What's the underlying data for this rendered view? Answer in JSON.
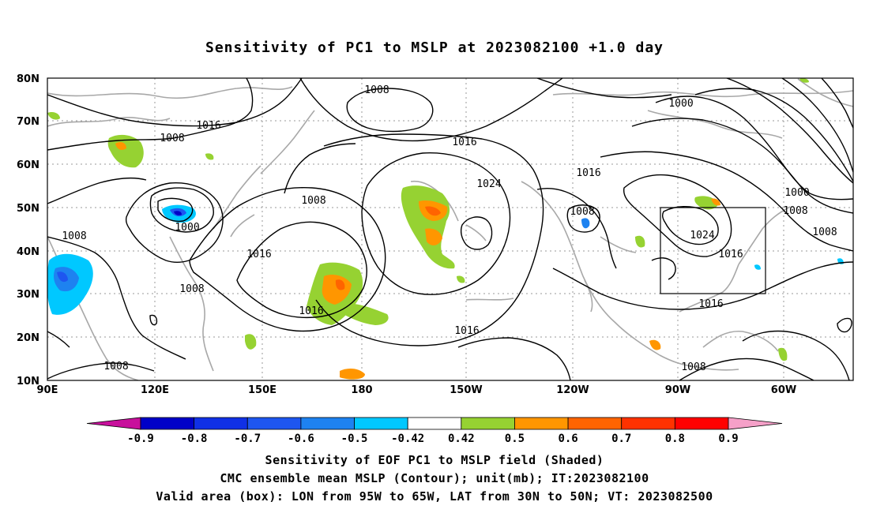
{
  "title": "Sensitivity of PC1 to MSLP at 2023082100 +1.0 day",
  "lat_labels": [
    "80N",
    "70N",
    "60N",
    "50N",
    "40N",
    "30N",
    "20N",
    "10N"
  ],
  "lon_labels": [
    "90E",
    "120E",
    "150E",
    "180",
    "150W",
    "120W",
    "90W",
    "60W"
  ],
  "contour_labels": [
    "1008",
    "1016",
    "1008",
    "1016",
    "1008",
    "1000",
    "1024",
    "1016",
    "1008",
    "1008",
    "1016",
    "1008",
    "1016",
    "1016",
    "1008",
    "1000",
    "1008",
    "1000",
    "1024",
    "1016",
    "1016",
    "1008",
    "1008"
  ],
  "colorbar": {
    "labels": [
      "-0.9",
      "-0.8",
      "-0.7",
      "-0.6",
      "-0.5",
      "-0.42",
      "0.42",
      "0.5",
      "0.6",
      "0.7",
      "0.8",
      "0.9"
    ],
    "colors": [
      "#c8109c",
      "#0000c8",
      "#1030e6",
      "#1e56f0",
      "#1e82f0",
      "#00c8ff",
      "#ffffff",
      "#96d232",
      "#ff9600",
      "#ff6400",
      "#ff3200",
      "#ff0000",
      "#f5a0c8"
    ]
  },
  "captions": [
    "Sensitivity of EOF PC1 to MSLP field (Shaded)",
    "CMC ensemble mean MSLP (Contour); unit(mb); IT:2023082100",
    "Valid area (box): LON from 95W to 65W, LAT from 30N to 50N; VT: 2023082500"
  ]
}
